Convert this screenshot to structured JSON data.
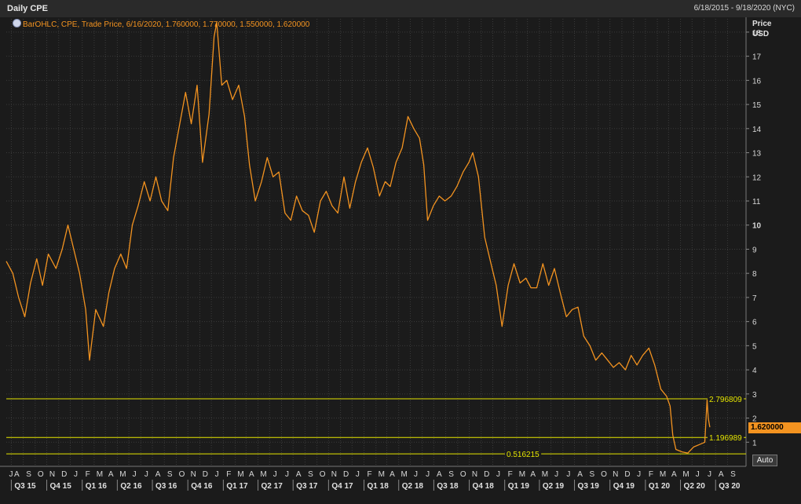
{
  "header": {
    "title": "Daily CPE",
    "date_range": "6/18/2015 - 9/18/2020 (NYC)"
  },
  "legend": {
    "text": "BarOHLC, CPE, Trade Price, 6/16/2020, 1.760000, 1.770000, 1.550000, 1.620000"
  },
  "axis": {
    "title_line1": "Price",
    "title_line2": "USD"
  },
  "controls": {
    "auto_label": "Auto"
  },
  "colors": {
    "background": "#1b1b1b",
    "grid": "#3b3b3b",
    "series": "#f39320",
    "level_lines": "#e6e600",
    "last_price_box": "#f39320"
  },
  "chart_data": {
    "type": "line",
    "ylim": [
      0,
      19
    ],
    "yticks": [
      1,
      2,
      3,
      4,
      5,
      6,
      7,
      8,
      9,
      10,
      11,
      12,
      13,
      14,
      15,
      16,
      17,
      18
    ],
    "x_range": [
      "2015-06-18",
      "2020-09-18"
    ],
    "grid": true,
    "month_labels": [
      "J",
      "A",
      "S",
      "O",
      "N",
      "D",
      "J",
      "F",
      "M",
      "A",
      "M",
      "J",
      "J",
      "A",
      "S",
      "O",
      "N",
      "D",
      "J",
      "F",
      "M",
      "A",
      "M",
      "J",
      "J",
      "A",
      "S",
      "O",
      "N",
      "D",
      "J",
      "F",
      "M",
      "A",
      "M",
      "J",
      "J",
      "A",
      "S",
      "O",
      "N",
      "D",
      "J",
      "F",
      "M",
      "A",
      "M",
      "J",
      "J",
      "A",
      "S",
      "O",
      "N",
      "D",
      "J",
      "F",
      "M",
      "A",
      "M",
      "J",
      "J",
      "A",
      "S"
    ],
    "quarter_labels": [
      "Q3 15",
      "Q4 15",
      "Q1 16",
      "Q2 16",
      "Q3 16",
      "Q4 16",
      "Q1 17",
      "Q2 17",
      "Q3 17",
      "Q4 17",
      "Q1 18",
      "Q2 18",
      "Q3 18",
      "Q4 18",
      "Q1 19",
      "Q2 19",
      "Q3 19",
      "Q4 19",
      "Q1 20",
      "Q2 20",
      "Q3 20"
    ],
    "last_price_label": "1.620000",
    "series": [
      {
        "points": [
          [
            "2015-06-18",
            8.5
          ],
          [
            "2015-07-05",
            8.0
          ],
          [
            "2015-07-20",
            7.0
          ],
          [
            "2015-08-05",
            6.2
          ],
          [
            "2015-08-20",
            7.6
          ],
          [
            "2015-09-05",
            8.6
          ],
          [
            "2015-09-20",
            7.5
          ],
          [
            "2015-10-05",
            8.8
          ],
          [
            "2015-10-25",
            8.2
          ],
          [
            "2015-11-10",
            9.0
          ],
          [
            "2015-11-25",
            10.0
          ],
          [
            "2015-12-10",
            9.0
          ],
          [
            "2015-12-25",
            8.0
          ],
          [
            "2016-01-10",
            6.5
          ],
          [
            "2016-01-20",
            4.4
          ],
          [
            "2016-02-05",
            6.5
          ],
          [
            "2016-02-25",
            5.8
          ],
          [
            "2016-03-10",
            7.2
          ],
          [
            "2016-03-25",
            8.2
          ],
          [
            "2016-04-10",
            8.8
          ],
          [
            "2016-04-25",
            8.2
          ],
          [
            "2016-05-10",
            10.0
          ],
          [
            "2016-05-25",
            10.8
          ],
          [
            "2016-06-10",
            11.8
          ],
          [
            "2016-06-25",
            11.0
          ],
          [
            "2016-07-10",
            12.0
          ],
          [
            "2016-07-25",
            11.0
          ],
          [
            "2016-08-10",
            10.6
          ],
          [
            "2016-08-25",
            12.8
          ],
          [
            "2016-09-10",
            14.2
          ],
          [
            "2016-09-25",
            15.5
          ],
          [
            "2016-10-10",
            14.2
          ],
          [
            "2016-10-25",
            15.8
          ],
          [
            "2016-11-08",
            12.6
          ],
          [
            "2016-11-25",
            14.6
          ],
          [
            "2016-12-08",
            17.8
          ],
          [
            "2016-12-15",
            18.4
          ],
          [
            "2016-12-28",
            15.8
          ],
          [
            "2017-01-10",
            16.0
          ],
          [
            "2017-01-25",
            15.2
          ],
          [
            "2017-02-10",
            15.8
          ],
          [
            "2017-02-25",
            14.5
          ],
          [
            "2017-03-10",
            12.5
          ],
          [
            "2017-03-25",
            11.0
          ],
          [
            "2017-04-10",
            11.8
          ],
          [
            "2017-04-25",
            12.8
          ],
          [
            "2017-05-10",
            12.0
          ],
          [
            "2017-05-25",
            12.2
          ],
          [
            "2017-06-10",
            10.5
          ],
          [
            "2017-06-25",
            10.2
          ],
          [
            "2017-07-10",
            11.2
          ],
          [
            "2017-07-25",
            10.6
          ],
          [
            "2017-08-10",
            10.4
          ],
          [
            "2017-08-25",
            9.7
          ],
          [
            "2017-09-10",
            11.0
          ],
          [
            "2017-09-25",
            11.4
          ],
          [
            "2017-10-10",
            10.8
          ],
          [
            "2017-10-25",
            10.5
          ],
          [
            "2017-11-10",
            12.0
          ],
          [
            "2017-11-25",
            10.7
          ],
          [
            "2017-12-10",
            11.8
          ],
          [
            "2017-12-25",
            12.6
          ],
          [
            "2018-01-10",
            13.2
          ],
          [
            "2018-01-25",
            12.4
          ],
          [
            "2018-02-10",
            11.2
          ],
          [
            "2018-02-25",
            11.8
          ],
          [
            "2018-03-10",
            11.6
          ],
          [
            "2018-03-25",
            12.6
          ],
          [
            "2018-04-10",
            13.2
          ],
          [
            "2018-04-25",
            14.5
          ],
          [
            "2018-05-10",
            14.0
          ],
          [
            "2018-05-25",
            13.6
          ],
          [
            "2018-06-05",
            12.5
          ],
          [
            "2018-06-15",
            10.2
          ],
          [
            "2018-06-30",
            10.8
          ],
          [
            "2018-07-15",
            11.2
          ],
          [
            "2018-07-30",
            11.0
          ],
          [
            "2018-08-15",
            11.2
          ],
          [
            "2018-08-30",
            11.6
          ],
          [
            "2018-09-15",
            12.2
          ],
          [
            "2018-09-30",
            12.6
          ],
          [
            "2018-10-10",
            13.0
          ],
          [
            "2018-10-25",
            12.0
          ],
          [
            "2018-11-10",
            9.5
          ],
          [
            "2018-11-25",
            8.5
          ],
          [
            "2018-12-10",
            7.5
          ],
          [
            "2018-12-25",
            5.8
          ],
          [
            "2019-01-10",
            7.5
          ],
          [
            "2019-01-25",
            8.4
          ],
          [
            "2019-02-10",
            7.6
          ],
          [
            "2019-02-25",
            7.8
          ],
          [
            "2019-03-10",
            7.4
          ],
          [
            "2019-03-25",
            7.4
          ],
          [
            "2019-04-10",
            8.4
          ],
          [
            "2019-04-25",
            7.5
          ],
          [
            "2019-05-10",
            8.2
          ],
          [
            "2019-05-25",
            7.2
          ],
          [
            "2019-06-10",
            6.2
          ],
          [
            "2019-06-25",
            6.5
          ],
          [
            "2019-07-10",
            6.6
          ],
          [
            "2019-07-25",
            5.4
          ],
          [
            "2019-08-10",
            5.0
          ],
          [
            "2019-08-25",
            4.4
          ],
          [
            "2019-09-10",
            4.7
          ],
          [
            "2019-09-25",
            4.4
          ],
          [
            "2019-10-10",
            4.1
          ],
          [
            "2019-10-25",
            4.3
          ],
          [
            "2019-11-10",
            4.0
          ],
          [
            "2019-11-25",
            4.6
          ],
          [
            "2019-12-10",
            4.2
          ],
          [
            "2019-12-25",
            4.6
          ],
          [
            "2020-01-10",
            4.9
          ],
          [
            "2020-01-25",
            4.2
          ],
          [
            "2020-02-10",
            3.2
          ],
          [
            "2020-02-25",
            2.9
          ],
          [
            "2020-03-05",
            2.5
          ],
          [
            "2020-03-12",
            1.3
          ],
          [
            "2020-03-20",
            0.7
          ],
          [
            "2020-04-05",
            0.6
          ],
          [
            "2020-04-20",
            0.55
          ],
          [
            "2020-05-05",
            0.8
          ],
          [
            "2020-05-20",
            0.9
          ],
          [
            "2020-06-03",
            1.0
          ],
          [
            "2020-06-09",
            2.75
          ],
          [
            "2020-06-12",
            2.0
          ],
          [
            "2020-06-16",
            1.62
          ]
        ]
      }
    ],
    "levels": [
      {
        "value": 2.796809,
        "label": "2.796809"
      },
      {
        "value": 1.196989,
        "label": "1.196989"
      },
      {
        "value": 0.516215,
        "label": "0.516215"
      }
    ]
  }
}
